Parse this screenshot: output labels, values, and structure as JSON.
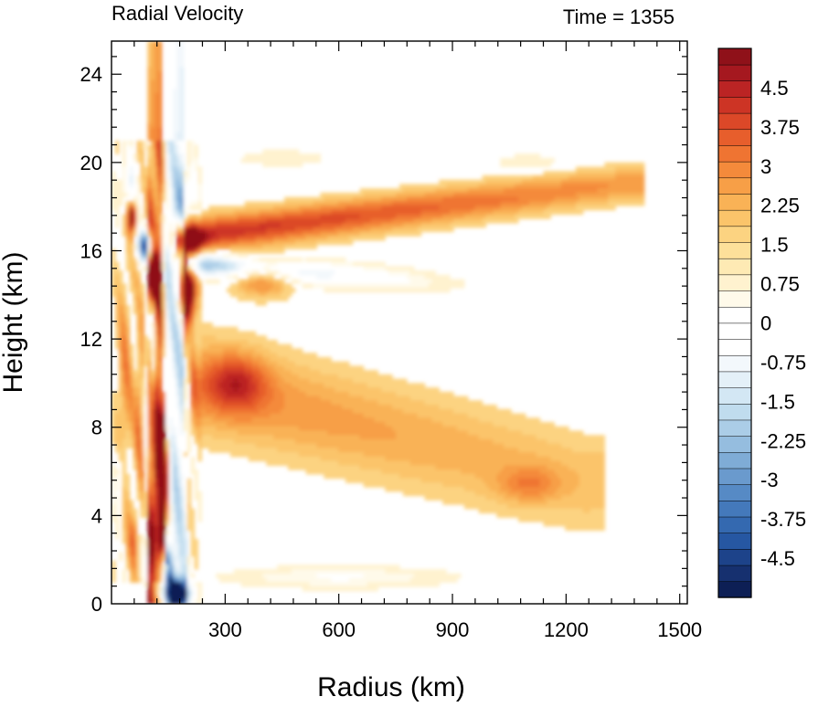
{
  "chart_data": {
    "type": "heatmap",
    "title_left": "Radial Velocity",
    "title_right": "Time = 1355",
    "xlabel": "Radius (km)",
    "ylabel": "Height (km)",
    "xlim": [
      0,
      1520
    ],
    "ylim": [
      0,
      25.5
    ],
    "xticks": [
      {
        "value": 300,
        "label": "300"
      },
      {
        "value": 600,
        "label": "600"
      },
      {
        "value": 900,
        "label": "900"
      },
      {
        "value": 1200,
        "label": "1200"
      },
      {
        "value": 1500,
        "label": "1500"
      }
    ],
    "yticks": [
      {
        "value": 0,
        "label": "0"
      },
      {
        "value": 4,
        "label": "4"
      },
      {
        "value": 8,
        "label": "8"
      },
      {
        "value": 12,
        "label": "12"
      },
      {
        "value": 16,
        "label": "16"
      },
      {
        "value": 20,
        "label": "20"
      },
      {
        "value": 24,
        "label": "24"
      }
    ],
    "colorbar": {
      "min": -5.25,
      "max": 5.25,
      "step": 0.25,
      "labels": [
        {
          "value": 4.5,
          "label": "4.5"
        },
        {
          "value": 3.75,
          "label": "3.75"
        },
        {
          "value": 3,
          "label": "3"
        },
        {
          "value": 2.25,
          "label": "2.25"
        },
        {
          "value": 1.5,
          "label": "1.5"
        },
        {
          "value": 0.75,
          "label": "0.75"
        },
        {
          "value": 0,
          "label": "0"
        },
        {
          "value": -0.75,
          "label": "-0.75"
        },
        {
          "value": -1.5,
          "label": "-1.5"
        },
        {
          "value": -2.25,
          "label": "-2.25"
        },
        {
          "value": -3,
          "label": "-3"
        },
        {
          "value": -3.75,
          "label": "-3.75"
        },
        {
          "value": -4.5,
          "label": "-4.5"
        }
      ],
      "colors": [
        "#0d1f55",
        "#16306f",
        "#1d438a",
        "#2657a2",
        "#3469b0",
        "#4479bb",
        "#568ac5",
        "#6a9acd",
        "#7facd6",
        "#95bddf",
        "#abcde7",
        "#c0dcee",
        "#d3e7f4",
        "#e4f0f8",
        "#f3f8fc",
        "#ffffff",
        "#ffffff",
        "#ffffff",
        "#fffaea",
        "#fff2cf",
        "#feeab4",
        "#fde09a",
        "#fcd381",
        "#fbc46a",
        "#f9b256",
        "#f79f47",
        "#f48a3b",
        "#ef7432",
        "#e75e2c",
        "#dc4828",
        "#cd3425",
        "#bb2424",
        "#a5181f",
        "#8f1119"
      ]
    },
    "features": [
      {
        "type": "blob",
        "x": 140,
        "y": 6.0,
        "rx": 14,
        "ry": 2.6,
        "v": 5.0
      },
      {
        "type": "blob",
        "x": 132,
        "y": 3.2,
        "rx": 9,
        "ry": 2.0,
        "v": 3.0
      },
      {
        "type": "blob",
        "x": 170,
        "y": 0.45,
        "rx": 40,
        "ry": 0.6,
        "v": -5.2
      },
      {
        "type": "blob",
        "x": 135,
        "y": 1.5,
        "rx": 28,
        "ry": 1.2,
        "v": -2.5
      },
      {
        "type": "blob",
        "x": 200,
        "y": 14.3,
        "rx": 22,
        "ry": 1.5,
        "v": 5.2
      },
      {
        "type": "blob",
        "x": 200,
        "y": 16.4,
        "rx": 40,
        "ry": 0.6,
        "v": 2.5
      },
      {
        "type": "blob",
        "x": 110,
        "y": 14.8,
        "rx": 18,
        "ry": 1.0,
        "v": 4.0
      },
      {
        "type": "blob",
        "x": 90,
        "y": 16.2,
        "rx": 22,
        "ry": 0.7,
        "v": -4.0
      },
      {
        "type": "blob",
        "x": 55,
        "y": 17.6,
        "rx": 12,
        "ry": 0.7,
        "v": 4.0
      },
      {
        "type": "blob",
        "x": 45,
        "y": 19.0,
        "rx": 25,
        "ry": 1.3,
        "v": -1.5
      },
      {
        "type": "blob",
        "x": 200,
        "y": 18.5,
        "rx": 25,
        "ry": 1.5,
        "v": -1.5
      },
      {
        "type": "blob",
        "x": 105,
        "y": 11.0,
        "rx": 12,
        "ry": 3.0,
        "v": -3.0
      },
      {
        "type": "blob",
        "x": 75,
        "y": 9.0,
        "rx": 12,
        "ry": 3.5,
        "v": 1.5
      },
      {
        "type": "blob",
        "x": 35,
        "y": 10.0,
        "rx": 22,
        "ry": 6.0,
        "v": 1.2
      },
      {
        "type": "blob",
        "x": 20,
        "y": 5.5,
        "rx": 15,
        "ry": 1.5,
        "v": -1.2
      },
      {
        "type": "blob",
        "x": 60,
        "y": 3.0,
        "rx": 15,
        "ry": 1.5,
        "v": 1.5
      },
      {
        "type": "blob",
        "x": 100,
        "y": 5.0,
        "rx": 10,
        "ry": 2.5,
        "v": -1.5
      },
      {
        "type": "blob",
        "x": 400,
        "y": 14.8,
        "rx": 80,
        "ry": 0.8,
        "v": 2.0
      },
      {
        "type": "blob",
        "x": 330,
        "y": 10.0,
        "rx": 80,
        "ry": 1.3,
        "v": 1.6
      },
      {
        "type": "blob",
        "x": 1100,
        "y": 5.4,
        "rx": 80,
        "ry": 0.8,
        "v": 0.9
      },
      {
        "type": "blob",
        "x": 600,
        "y": 1.2,
        "rx": 300,
        "ry": 0.5,
        "v": -0.8
      },
      {
        "type": "blob",
        "x": 450,
        "y": 20.2,
        "rx": 130,
        "ry": 0.4,
        "v": -0.5
      },
      {
        "type": "blob",
        "x": 1100,
        "y": 20.0,
        "rx": 100,
        "ry": 0.4,
        "v": -0.5
      },
      {
        "type": "band",
        "x0": 230,
        "y0": 16.7,
        "x1": 1350,
        "y1": 19.0,
        "width": 0.8,
        "v0": 2.5,
        "v1": 1.2
      },
      {
        "type": "band",
        "x0": 230,
        "y0": 15.4,
        "x1": 900,
        "y1": 14.5,
        "width": 0.55,
        "v0": -3.0,
        "v1": -0.3
      },
      {
        "type": "band",
        "x0": 260,
        "y0": 9.8,
        "x1": 1250,
        "y1": 5.5,
        "width": 2.2,
        "v0": 1.3,
        "v1": 0.7
      },
      {
        "type": "band",
        "x0": 150,
        "y0": 0.3,
        "x1": 190,
        "y1": 14.0,
        "width": 10,
        "v0": -2.0,
        "v1": -2.0
      },
      {
        "type": "band",
        "x0": 100,
        "y0": 0.3,
        "x1": 135,
        "y1": 12.0,
        "width": 6,
        "v0": 3.5,
        "v1": 2.0
      }
    ]
  }
}
